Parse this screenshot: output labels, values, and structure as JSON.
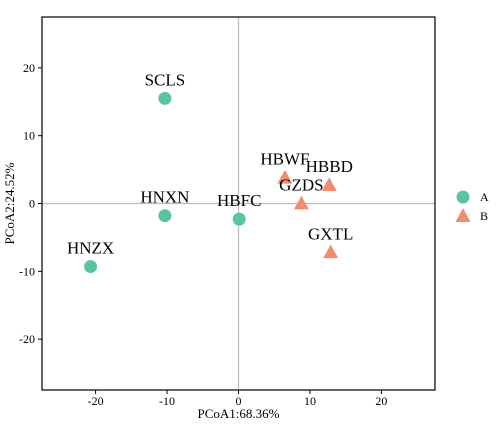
{
  "chart_data": {
    "type": "scatter",
    "xlabel": "PCoA1:68.36%",
    "ylabel": "PCoA2:24.52%",
    "xlim": [
      -27.5,
      27.5
    ],
    "ylim": [
      -27.5,
      27.5
    ],
    "xticks": [
      -20,
      -10,
      0,
      10,
      20
    ],
    "yticks": [
      20,
      10,
      0,
      -10,
      -20
    ],
    "colors": {
      "A": "#5cc3a0",
      "B": "#f28c6e"
    },
    "grid": false,
    "legend_position": "right",
    "series": [
      {
        "name": "A",
        "marker": "circle",
        "points": [
          {
            "label": "SCLS",
            "x": -10.3,
            "y": 15.5
          },
          {
            "label": "HNXN",
            "x": -10.3,
            "y": -1.8
          },
          {
            "label": "HBFC",
            "x": 0.1,
            "y": -2.3
          },
          {
            "label": "HNZX",
            "x": -20.7,
            "y": -9.3
          }
        ]
      },
      {
        "name": "B",
        "marker": "triangle",
        "points": [
          {
            "label": "HBWF",
            "x": 6.5,
            "y": 3.8
          },
          {
            "label": "HBBD",
            "x": 12.7,
            "y": 2.7
          },
          {
            "label": "GZDS",
            "x": 8.8,
            "y": 0.0
          },
          {
            "label": "GXTL",
            "x": 12.9,
            "y": -7.2
          }
        ]
      }
    ]
  }
}
